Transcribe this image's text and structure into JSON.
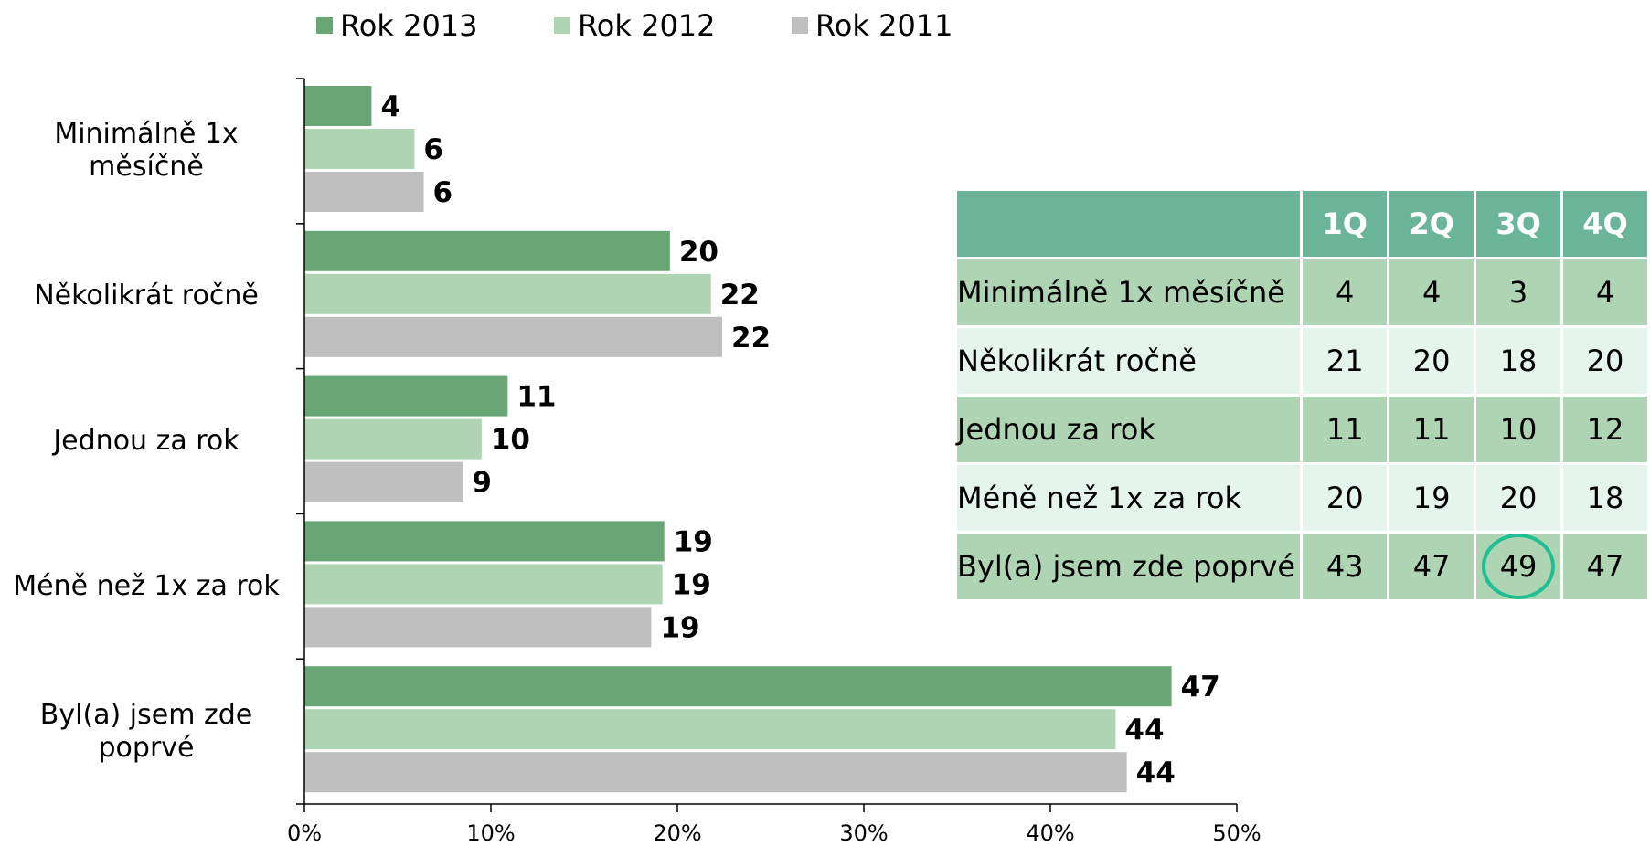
{
  "chart_data": {
    "type": "bar",
    "orientation": "horizontal",
    "categories": [
      "Minimálně 1x měsíčně",
      "Několikrát ročně",
      "Jednou za rok",
      "Méně než 1x za rok",
      "Byl(a) jsem zde poprvé"
    ],
    "category_labels": [
      [
        "Minimálně 1x",
        "měsíčně"
      ],
      [
        "Několikrát ročně"
      ],
      [
        "Jednou za rok"
      ],
      [
        "Méně než 1x za rok"
      ],
      [
        "Byl(a) jsem zde",
        "poprvé"
      ]
    ],
    "series": [
      {
        "name": "Rok 2013",
        "color": "#68a676",
        "values": [
          4,
          20,
          11,
          19,
          47
        ],
        "bar_values": [
          3.6,
          19.6,
          10.9,
          19.3,
          46.5
        ]
      },
      {
        "name": "Rok 2012",
        "color": "#aed4b4",
        "values": [
          6,
          22,
          10,
          19,
          44
        ],
        "bar_values": [
          5.9,
          21.8,
          9.5,
          19.2,
          43.5
        ]
      },
      {
        "name": "Rok 2011",
        "color": "#bfbfbf",
        "values": [
          6,
          22,
          9,
          19,
          44
        ],
        "bar_values": [
          6.4,
          22.4,
          8.5,
          18.6,
          44.1
        ]
      }
    ],
    "xlim": [
      0,
      50
    ],
    "xticks": [
      "0%",
      "10%",
      "20%",
      "30%",
      "40%",
      "50%"
    ],
    "legend": "top",
    "grid": false
  },
  "table": {
    "headers": [
      "",
      "1Q",
      "2Q",
      "3Q",
      "4Q"
    ],
    "header_color": "#6ab49a",
    "rows": [
      {
        "label": "Minimálně 1x měsíčně",
        "values": [
          "4",
          "4",
          "3",
          "4"
        ],
        "shade": "dark"
      },
      {
        "label": "Několikrát ročně",
        "values": [
          "21",
          "20",
          "18",
          "20"
        ],
        "shade": "light"
      },
      {
        "label": "Jednou za rok",
        "values": [
          "11",
          "11",
          "10",
          "12"
        ],
        "shade": "dark"
      },
      {
        "label": "Méně než 1x za rok",
        "values": [
          "20",
          "19",
          "20",
          "18"
        ],
        "shade": "light"
      },
      {
        "label": "Byl(a) jsem zde poprvé",
        "values": [
          "43",
          "47",
          "49",
          "47"
        ],
        "shade": "dark"
      }
    ],
    "highlight": {
      "row": 4,
      "col": 2,
      "color": "#1fbf94"
    }
  }
}
